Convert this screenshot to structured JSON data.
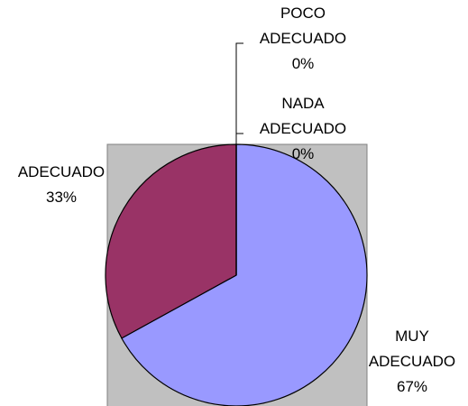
{
  "chart_data": {
    "type": "pie",
    "categories": [
      "MUY ADECUADO",
      "ADECUADO",
      "NADA ADECUADO",
      "POCO ADECUADO"
    ],
    "values": [
      67,
      33,
      0,
      0
    ],
    "value_labels": [
      "67%",
      "33%",
      "0%",
      "0%"
    ],
    "colors": [
      "#9999ff",
      "#993366",
      "#ffffcc",
      "#ccffff"
    ],
    "start_angle": 90,
    "direction": "clockwise",
    "plot_background": "#c0c0c0"
  }
}
